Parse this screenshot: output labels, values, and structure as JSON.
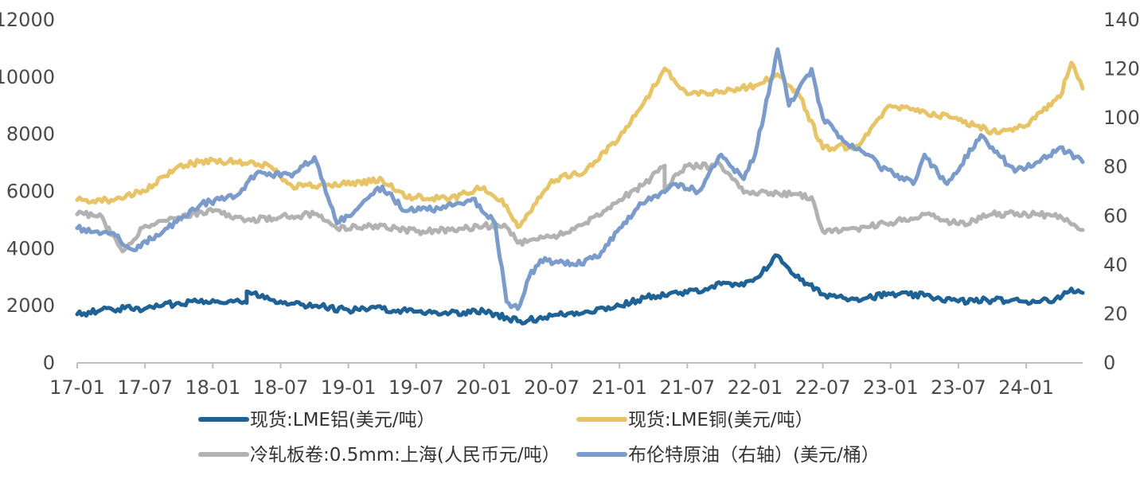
{
  "chart_data": {
    "type": "line",
    "x_ticks": [
      "17-01",
      "17-07",
      "18-01",
      "18-07",
      "19-01",
      "19-07",
      "20-01",
      "20-07",
      "21-01",
      "21-07",
      "22-01",
      "22-07",
      "23-01",
      "23-07",
      "24-01"
    ],
    "y_left": {
      "ylim": [
        0,
        12000
      ],
      "ticks": [
        "0",
        "2000",
        "4000",
        "6000",
        "8000",
        "10000",
        "12000"
      ]
    },
    "y_right": {
      "ylim": [
        0,
        140
      ],
      "ticks": [
        "0",
        "20",
        "40",
        "60",
        "80",
        "100",
        "120",
        "140"
      ]
    },
    "grid": false,
    "legend_position": "bottom",
    "series": [
      {
        "name": "现货:LME铝(美元/吨）",
        "axis": "left",
        "color": "#1f6396",
        "x": [
          "2017-01",
          "2017-04",
          "2017-07",
          "2017-10",
          "2018-01",
          "2018-04",
          "2018-04",
          "2018-07",
          "2018-10",
          "2019-01",
          "2019-04",
          "2019-07",
          "2019-10",
          "2020-01",
          "2020-03",
          "2020-04",
          "2020-05",
          "2020-07",
          "2020-10",
          "2021-01",
          "2021-04",
          "2021-07",
          "2021-10",
          "2021-12",
          "2022-01",
          "2022-03",
          "2022-04",
          "2022-05",
          "2022-07",
          "2022-10",
          "2023-01",
          "2023-04",
          "2023-07",
          "2023-10",
          "2024-01",
          "2024-04",
          "2024-05",
          "2024-06"
        ],
        "values": [
          1700,
          1900,
          1900,
          2100,
          2200,
          2100,
          2500,
          2150,
          2000,
          1850,
          1900,
          1800,
          1750,
          1800,
          1600,
          1450,
          1500,
          1650,
          1800,
          2000,
          2350,
          2450,
          2750,
          2700,
          2950,
          3750,
          3300,
          2900,
          2400,
          2250,
          2400,
          2350,
          2150,
          2200,
          2150,
          2250,
          2600,
          2450
        ]
      },
      {
        "name": "现货:LME铜(美元/吨）",
        "axis": "left",
        "color": "#e6c467",
        "x": [
          "2017-01",
          "2017-04",
          "2017-07",
          "2017-10",
          "2018-01",
          "2018-06",
          "2018-08",
          "2018-11",
          "2019-04",
          "2019-06",
          "2019-10",
          "2020-01",
          "2020-03",
          "2020-04",
          "2020-07",
          "2020-10",
          "2021-01",
          "2021-03",
          "2021-05",
          "2021-07",
          "2021-10",
          "2022-01",
          "2022-03",
          "2022-05",
          "2022-07",
          "2022-10",
          "2023-01",
          "2023-04",
          "2023-07",
          "2023-10",
          "2024-01",
          "2024-04",
          "2024-05",
          "2024-06"
        ],
        "values": [
          5700,
          5700,
          6000,
          6900,
          7100,
          6900,
          6200,
          6200,
          6400,
          5800,
          5750,
          6150,
          5500,
          4750,
          6400,
          6700,
          7900,
          9000,
          10300,
          9400,
          9500,
          9700,
          10100,
          9300,
          7500,
          7600,
          9000,
          8800,
          8500,
          8100,
          8300,
          9300,
          10500,
          9600
        ]
      },
      {
        "name": "冷轧板卷:0.5mm:上海(人民币元/吨）",
        "axis": "left",
        "color": "#b2b2b2",
        "x": [
          "2017-01",
          "2017-03",
          "2017-05",
          "2017-07",
          "2017-10",
          "2018-01",
          "2018-04",
          "2018-07",
          "2018-10",
          "2018-12",
          "2019-03",
          "2019-07",
          "2019-10",
          "2020-01",
          "2020-03",
          "2020-04",
          "2020-07",
          "2020-10",
          "2021-01",
          "2021-03",
          "2021-05",
          "2021-05",
          "2021-07",
          "2021-10",
          "2021-12",
          "2022-03",
          "2022-06",
          "2022-07",
          "2022-10",
          "2023-01",
          "2023-04",
          "2023-07",
          "2023-10",
          "2024-01",
          "2024-04",
          "2024-06"
        ],
        "values": [
          5200,
          5200,
          3900,
          4800,
          5100,
          5300,
          5000,
          5100,
          5200,
          4700,
          4800,
          4600,
          4650,
          4800,
          4750,
          4200,
          4400,
          4900,
          5700,
          6200,
          6900,
          6100,
          6900,
          6900,
          5950,
          5950,
          5800,
          4600,
          4700,
          4900,
          5200,
          4850,
          5200,
          5200,
          5150,
          4650
        ]
      },
      {
        "name": "布伦特原油（右轴）(美元/桶）",
        "axis": "right",
        "color": "#7b9ccb",
        "x": [
          "2017-01",
          "2017-04",
          "2017-06",
          "2017-09",
          "2017-12",
          "2018-03",
          "2018-05",
          "2018-08",
          "2018-10",
          "2018-12",
          "2019-02",
          "2019-04",
          "2019-06",
          "2019-09",
          "2019-12",
          "2020-02",
          "2020-03",
          "2020-04",
          "2020-05",
          "2020-06",
          "2020-09",
          "2020-11",
          "2021-01",
          "2021-03",
          "2021-06",
          "2021-08",
          "2021-10",
          "2021-12",
          "2022-01",
          "2022-03",
          "2022-04",
          "2022-06",
          "2022-07",
          "2022-09",
          "2022-11",
          "2022-12",
          "2023-03",
          "2023-04",
          "2023-06",
          "2023-09",
          "2023-10",
          "2023-12",
          "2024-02",
          "2024-04",
          "2024-06"
        ],
        "values": [
          55,
          53,
          46,
          55,
          65,
          68,
          78,
          76,
          84,
          57,
          64,
          72,
          62,
          63,
          67,
          57,
          25,
          22,
          35,
          42,
          40,
          43,
          55,
          65,
          73,
          70,
          85,
          75,
          85,
          128,
          105,
          120,
          100,
          90,
          85,
          80,
          73,
          85,
          73,
          93,
          88,
          78,
          82,
          88,
          82
        ]
      }
    ]
  }
}
